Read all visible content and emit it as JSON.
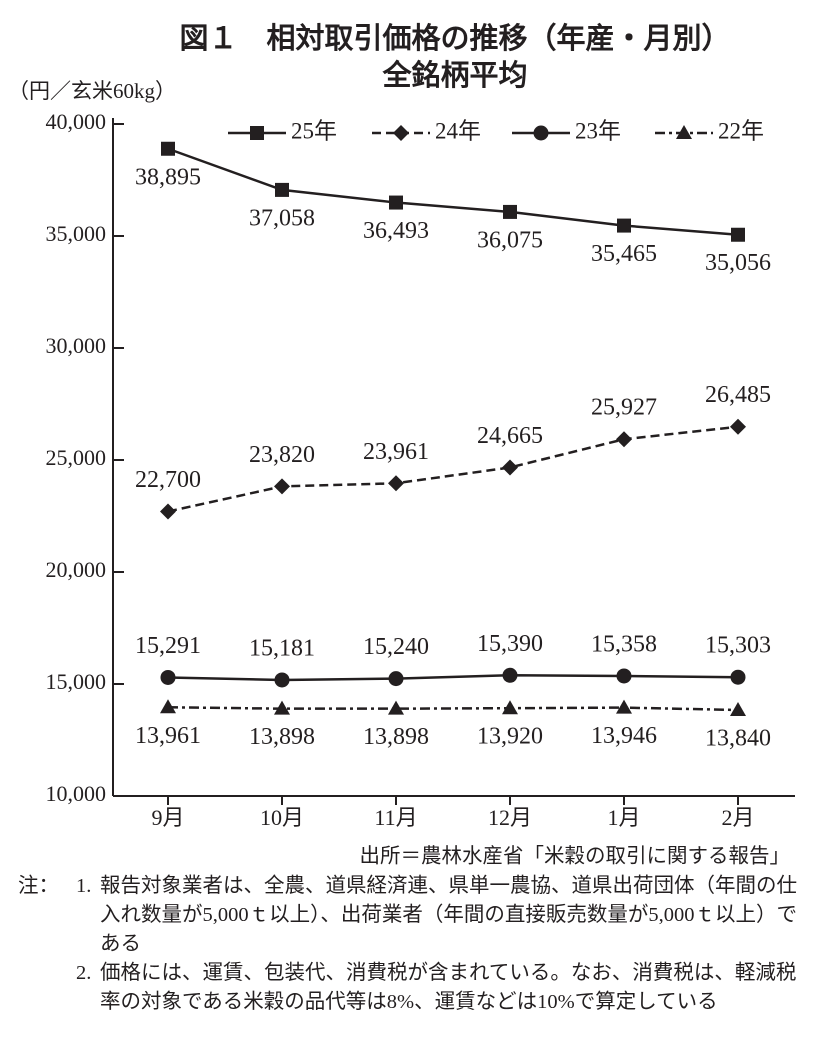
{
  "chart_data": {
    "type": "line",
    "title": "図１　相対取引価格の推移（年産・月別）",
    "subtitle": "全銘柄平均",
    "y_label": "（円／玄米60kg）",
    "categories": [
      "9月",
      "10月",
      "11月",
      "12月",
      "1月",
      "2月"
    ],
    "ylim": [
      10000,
      40000
    ],
    "yticks": [
      {
        "value": 10000,
        "label": "10,000"
      },
      {
        "value": 15000,
        "label": "15,000"
      },
      {
        "value": 20000,
        "label": "20,000"
      },
      {
        "value": 25000,
        "label": "25,000"
      },
      {
        "value": 30000,
        "label": "30,000"
      },
      {
        "value": 35000,
        "label": "35,000"
      },
      {
        "value": 40000,
        "label": "40,000"
      }
    ],
    "series": [
      {
        "name": "25年",
        "color": "#231f20",
        "marker": "square",
        "line_style": "solid",
        "label_position": "below",
        "values": [
          38895,
          37058,
          36493,
          36075,
          35465,
          35056
        ],
        "value_labels": [
          "38,895",
          "37,058",
          "36,493",
          "36,075",
          "35,465",
          "35,056"
        ]
      },
      {
        "name": "24年",
        "color": "#231f20",
        "marker": "diamond",
        "line_style": "dashed",
        "label_position": "above",
        "values": [
          22700,
          23820,
          23961,
          24665,
          25927,
          26485
        ],
        "value_labels": [
          "22,700",
          "23,820",
          "23,961",
          "24,665",
          "25,927",
          "26,485"
        ]
      },
      {
        "name": "23年",
        "color": "#231f20",
        "marker": "circle",
        "line_style": "solid",
        "label_position": "above",
        "values": [
          15291,
          15181,
          15240,
          15390,
          15358,
          15303
        ],
        "value_labels": [
          "15,291",
          "15,181",
          "15,240",
          "15,390",
          "15,358",
          "15,303"
        ]
      },
      {
        "name": "22年",
        "color": "#231f20",
        "marker": "triangle",
        "line_style": "dashdot",
        "label_position": "below",
        "values": [
          13961,
          13898,
          13898,
          13920,
          13946,
          13840
        ],
        "value_labels": [
          "13,961",
          "13,898",
          "13,898",
          "13,920",
          "13,946",
          "13,840"
        ]
      }
    ],
    "source": "出所＝農林水産省「米穀の取引に関する報告」",
    "notes_label": "注：",
    "notes": [
      {
        "number": "1.",
        "text": "報告対象業者は、全農、道県経済連、県単一農協、道県出荷団体（年間の仕入れ数量が5,000ｔ以上）、出荷業者（年間の直接販売数量が5,000ｔ以上）である"
      },
      {
        "number": "2.",
        "text": "価格には、運賃、包装代、消費税が含まれている。なお、消費税は、軽減税率の対象である米穀の品代等は8%、運賃などは10%で算定している"
      }
    ]
  }
}
